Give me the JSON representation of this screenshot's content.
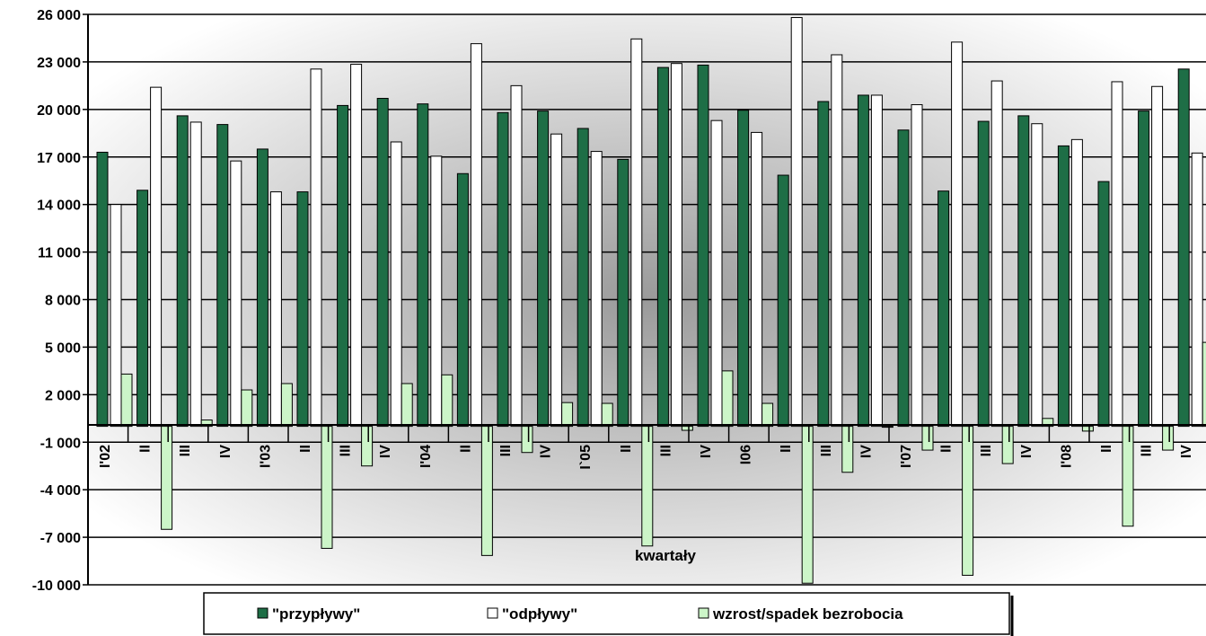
{
  "chart_data": {
    "type": "bar",
    "xlabel": "kwartały",
    "ylabel": "",
    "ylim": [
      -10000,
      26000
    ],
    "yticks": [
      -10000,
      -7000,
      -4000,
      -1000,
      2000,
      5000,
      8000,
      11000,
      14000,
      17000,
      20000,
      23000,
      26000
    ],
    "ytick_labels": [
      "-10 000",
      "-7 000",
      "-4 000",
      "-1 000",
      "2 000",
      "5 000",
      "8 000",
      "11 000",
      "14 000",
      "17 000",
      "20 000",
      "23 000",
      "26 000"
    ],
    "grid": "horizontal",
    "legend_position": "bottom",
    "categories": [
      "I'02",
      "II",
      "III",
      "IV",
      "I'03",
      "II",
      "III",
      "IV",
      "I'04",
      "II",
      "III",
      "IV",
      "I`05",
      "II",
      "III",
      "IV",
      "I06",
      "II",
      "III",
      "IV",
      "I'07",
      "II",
      "III",
      "IV",
      "I'08",
      "II",
      "III",
      "IV"
    ],
    "series": [
      {
        "name": "\"przypływy\"",
        "color": "#1e6e46",
        "values": [
          17300,
          14900,
          19600,
          19050,
          17500,
          14800,
          20250,
          20700,
          20350,
          15950,
          19800,
          19900,
          18800,
          16850,
          22650,
          22800,
          19950,
          15850,
          20500,
          20900,
          18700,
          14850,
          19250,
          19600,
          17700,
          15450,
          19900,
          22550
        ]
      },
      {
        "name": "\"odpływy\"",
        "color": "#ffffff",
        "values": [
          14000,
          21400,
          19200,
          16750,
          14800,
          22550,
          22850,
          17950,
          17050,
          24150,
          21500,
          18450,
          17350,
          24450,
          22900,
          19300,
          18550,
          25800,
          23450,
          20900,
          20300,
          24250,
          21800,
          19100,
          18100,
          21750,
          21450,
          17250
        ]
      },
      {
        "name": "wzrost/spadek bezrobocia",
        "color": "#ccf5c8",
        "values": [
          3300,
          -6500,
          400,
          2300,
          2700,
          -7700,
          -2500,
          2700,
          3250,
          -8150,
          -1650,
          1500,
          1450,
          -7550,
          -250,
          3500,
          1450,
          -9900,
          -2900,
          -50,
          -1500,
          -9400,
          -2350,
          500,
          -300,
          -6300,
          -1500,
          5300
        ]
      }
    ]
  }
}
